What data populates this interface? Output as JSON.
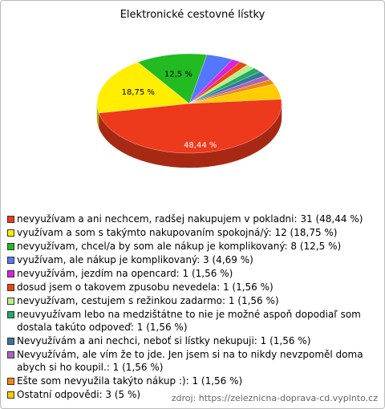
{
  "chart_data": {
    "type": "pie",
    "title": "Elektronické cestovné lístky",
    "categories": [
      "nevyužívam a ani nechcem, radšej nakupujem v pokladni: 31 (48,44 %)",
      "využívam a som s takýmto nakupovaním spokojná/ý: 12 (18,75 %)",
      "nevyužívam, chcel/a by som ale nákup je komplikovaný: 8 (12,5 %)",
      "využívam, ale nákup je komplikovaný: 3 (4,69 %)",
      "nevyužívám, jezdím na opencard: 1 (1,56 %)",
      "dosud jsem o takovem zpusobu nevedela: 1 (1,56 %)",
      "nevyužívam, cestujem s režinkou zadarmo: 1 (1,56 %)",
      "neuvyužívam lebo na medzištátne to nie je možné aspoň dopodiaľ  som dostala takúto odpoveď: 1 (1,56 %)",
      "Nevyužívám a ani nechci, neboť si lístky nekupuji: 1 (1,56 %)",
      "Nevyužívám, ale vím že to jde. Jen jsem si na to nikdy nevzpoměl doma abych si ho koupil.: 1 (1,56 %)",
      "Ešte som nevyužila takýto nákup :): 1 (1,56 %)",
      "Ostatní odpovědi: 3 (5 %)"
    ],
    "values": [
      48.44,
      18.75,
      12.5,
      4.69,
      1.56,
      1.56,
      1.56,
      1.56,
      1.56,
      1.56,
      1.56,
      5
    ],
    "value_labels": [
      "48,44 %",
      "18,75 %",
      "12,5 %",
      null,
      null,
      null,
      null,
      null,
      null,
      null,
      null,
      null
    ],
    "colors": [
      "#ee3a1c",
      "#ffee00",
      "#22bb22",
      "#5577ff",
      "#dd22dd",
      "#ee4411",
      "#bbee88",
      "#22aa66",
      "#337799",
      "#aa66bb",
      "#ee8811",
      "#ffcc00"
    ],
    "source": "zdroj: https://zeleznicna-doprava-cd.vyplnto.cz"
  }
}
